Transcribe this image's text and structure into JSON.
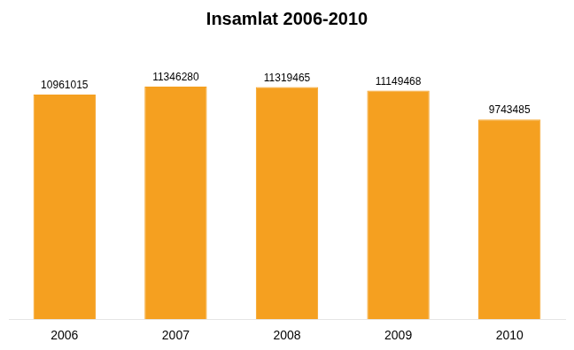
{
  "chart_data": {
    "type": "bar",
    "title": "Insamlat 2006-2010",
    "categories": [
      "2006",
      "2007",
      "2008",
      "2009",
      "2010"
    ],
    "values": [
      10961015,
      11346280,
      11319465,
      11149468,
      9743485
    ],
    "color": "#F5A020",
    "ylim": [
      0,
      13500000
    ],
    "grid": false,
    "data_labels": true,
    "tick_labels": "x"
  }
}
